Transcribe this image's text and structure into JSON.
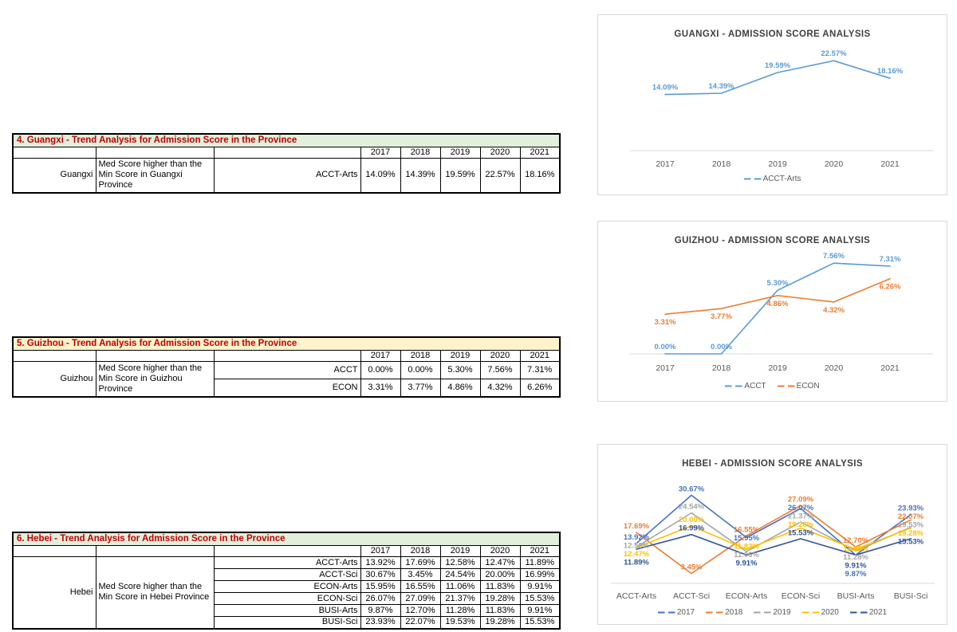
{
  "style": {
    "chart_title_color": "#404040",
    "axis_text_color": "#595959",
    "axis_line_color": "#d9d9d9",
    "table_title_color": "#C00000",
    "green_band": "#E2EFDA",
    "cream_band": "#FFF2CC"
  },
  "tables": [
    {
      "title": "4. Guangxi - Trend Analysis for Admission Score in the Province",
      "title_bg": "#E2EFDA",
      "years": [
        "2017",
        "2018",
        "2019",
        "2020",
        "2021"
      ],
      "province": "Guangxi",
      "description": "Med Score higher than the Min Score in Guangxi Province",
      "rows": [
        {
          "program": "ACCT-Arts",
          "values": [
            "14.09%",
            "14.39%",
            "19.59%",
            "22.57%",
            "18.16%"
          ]
        }
      ]
    },
    {
      "title": "5. Guizhou - Trend Analysis for Admission Score in the Province",
      "title_bg": "#FFF2CC",
      "years": [
        "2017",
        "2018",
        "2019",
        "2020",
        "2021"
      ],
      "province": "Guizhou",
      "description": "Med Score higher than the Min Score in Guizhou Province",
      "rows": [
        {
          "program": "ACCT",
          "values": [
            "0.00%",
            "0.00%",
            "5.30%",
            "7.56%",
            "7.31%"
          ]
        },
        {
          "program": "ECON",
          "values": [
            "3.31%",
            "3.77%",
            "4.86%",
            "4.32%",
            "6.26%"
          ]
        }
      ]
    },
    {
      "title": "6. Hebei - Trend Analysis for Admission Score in the Province",
      "title_bg": "#E2EFDA",
      "years": [
        "2017",
        "2018",
        "2019",
        "2020",
        "2021"
      ],
      "province": "Hebei",
      "description": "Med Score higher than the Min Score in Hebei Province",
      "rows": [
        {
          "program": "ACCT-Arts",
          "values": [
            "13.92%",
            "17.69%",
            "12.58%",
            "12.47%",
            "11.89%"
          ]
        },
        {
          "program": "ACCT-Sci",
          "values": [
            "30.67%",
            "3.45%",
            "24.54%",
            "20.00%",
            "16.99%"
          ]
        },
        {
          "program": "ECON-Arts",
          "values": [
            "15.95%",
            "16.55%",
            "11.06%",
            "11.83%",
            "9.91%"
          ]
        },
        {
          "program": "ECON-Sci",
          "values": [
            "26.07%",
            "27.09%",
            "21.37%",
            "19.28%",
            "15.53%"
          ]
        },
        {
          "program": "BUSI-Arts",
          "values": [
            "9.87%",
            "12.70%",
            "11.28%",
            "11.83%",
            "9.91%"
          ]
        },
        {
          "program": "BUSI-Sci",
          "values": [
            "23.93%",
            "22.07%",
            "19.53%",
            "19.28%",
            "15.53%"
          ]
        }
      ]
    }
  ],
  "chart_data": [
    {
      "type": "line",
      "title": "GUANGXI - ADMISSION SCORE ANALYSIS",
      "x": [
        "2017",
        "2018",
        "2019",
        "2020",
        "2021"
      ],
      "series": [
        {
          "name": "ACCT-Arts",
          "color": "#5B9BD5",
          "label_pos": "above",
          "values": [
            14.09,
            14.39,
            19.59,
            22.57,
            18.16
          ]
        }
      ],
      "ylim": [
        0,
        24
      ],
      "value_format": "0.00%",
      "grid": false,
      "legend_position": "bottom",
      "data_labels": true
    },
    {
      "type": "line",
      "title": "GUIZHOU - ADMISSION SCORE ANALYSIS",
      "x": [
        "2017",
        "2018",
        "2019",
        "2020",
        "2021"
      ],
      "series": [
        {
          "name": "ACCT",
          "color": "#5B9BD5",
          "label_pos": "above",
          "values": [
            0.0,
            0.0,
            5.3,
            7.56,
            7.31
          ]
        },
        {
          "name": "ECON",
          "color": "#ED7D31",
          "label_pos": "below",
          "values": [
            3.31,
            3.77,
            4.86,
            4.32,
            6.26
          ]
        }
      ],
      "ylim": [
        0,
        8.5
      ],
      "value_format": "0.00%",
      "grid": false,
      "legend_position": "bottom",
      "data_labels": true
    },
    {
      "type": "line",
      "title": "HEBEI - ADMISSION SCORE ANALYSIS",
      "x": [
        "ACCT-Arts",
        "ACCT-Sci",
        "ECON-Arts",
        "ECON-Sci",
        "BUSI-Arts",
        "BUSI-Sci"
      ],
      "series": [
        {
          "name": "2017",
          "color": "#4472C4",
          "label_pos": "auto",
          "values": [
            13.92,
            30.67,
            15.95,
            26.07,
            9.87,
            23.93
          ]
        },
        {
          "name": "2018",
          "color": "#ED7D31",
          "label_pos": "auto",
          "values": [
            17.69,
            3.45,
            16.55,
            27.09,
            12.7,
            22.07
          ]
        },
        {
          "name": "2019",
          "color": "#A5A5A5",
          "label_pos": "auto",
          "values": [
            12.58,
            24.54,
            11.06,
            21.37,
            11.28,
            19.53
          ]
        },
        {
          "name": "2020",
          "color": "#FFC000",
          "label_pos": "auto",
          "values": [
            12.47,
            20.0,
            11.83,
            19.28,
            11.83,
            19.28
          ]
        },
        {
          "name": "2021",
          "color": "#2F5597",
          "label_pos": "auto",
          "values": [
            11.89,
            16.99,
            9.91,
            15.53,
            9.91,
            15.53
          ]
        }
      ],
      "ylim": [
        0,
        33
      ],
      "value_format": "0.00%",
      "grid": false,
      "legend_position": "bottom",
      "data_labels": true
    }
  ]
}
